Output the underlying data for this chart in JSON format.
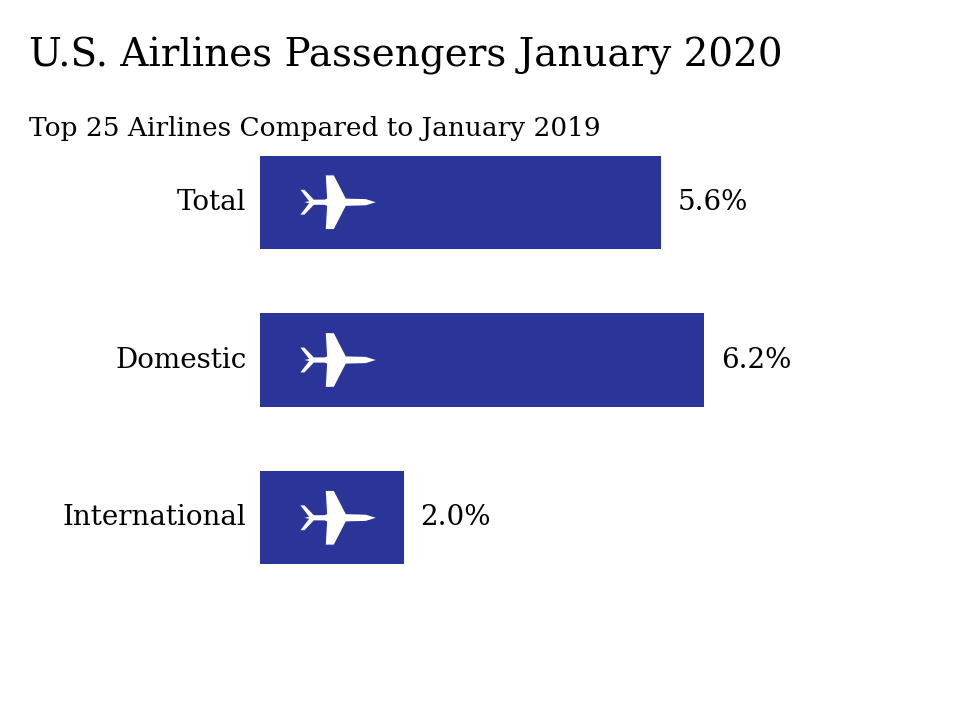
{
  "title": "U.S. Airlines Passengers January 2020",
  "subtitle": "Top 25 Airlines Compared to January 2019",
  "categories": [
    "Total",
    "Domestic",
    "International"
  ],
  "values": [
    5.6,
    6.2,
    2.0
  ],
  "labels": [
    "5.6%",
    "6.2%",
    "2.0%"
  ],
  "max_value": 7.5,
  "bar_color": "#2B3499",
  "background_color": "#ffffff",
  "title_fontsize": 28,
  "subtitle_fontsize": 19,
  "category_fontsize": 20,
  "value_fontsize": 20
}
